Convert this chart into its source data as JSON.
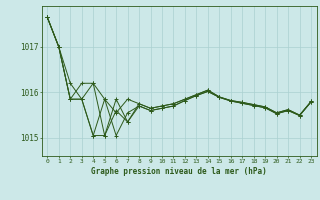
{
  "background_color": "#cce8e8",
  "grid_color": "#aad0d0",
  "line_color": "#2d5a1b",
  "xlabel": "Graphe pression niveau de la mer (hPa)",
  "xlim": [
    -0.5,
    23.5
  ],
  "ylim": [
    1014.6,
    1017.9
  ],
  "yticks": [
    1015,
    1016,
    1017
  ],
  "xticks": [
    0,
    1,
    2,
    3,
    4,
    5,
    6,
    7,
    8,
    9,
    10,
    11,
    12,
    13,
    14,
    15,
    16,
    17,
    18,
    19,
    20,
    21,
    22,
    23
  ],
  "series": [
    [
      1017.65,
      1017.0,
      1016.2,
      1015.85,
      1016.2,
      1015.05,
      1015.85,
      1015.35,
      1015.75,
      1015.65,
      1015.7,
      1015.75,
      1015.85,
      1015.95,
      1016.05,
      1015.9,
      1015.82,
      1015.78,
      1015.73,
      1015.68,
      1015.55,
      1015.62,
      1015.5,
      1015.8
    ],
    [
      1017.65,
      1017.0,
      1015.85,
      1016.2,
      1016.2,
      1015.85,
      1015.55,
      1015.85,
      1015.75,
      1015.65,
      1015.7,
      1015.75,
      1015.85,
      1015.95,
      1016.05,
      1015.9,
      1015.82,
      1015.78,
      1015.73,
      1015.68,
      1015.55,
      1015.62,
      1015.5,
      1015.8
    ],
    [
      1017.65,
      1017.0,
      1015.85,
      1015.85,
      1015.05,
      1015.85,
      1015.05,
      1015.55,
      1015.7,
      1015.6,
      1015.65,
      1015.7,
      1015.82,
      1015.93,
      1016.02,
      1015.89,
      1015.81,
      1015.76,
      1015.71,
      1015.66,
      1015.53,
      1015.6,
      1015.49,
      1015.79
    ],
    [
      1017.65,
      1017.0,
      1015.85,
      1015.85,
      1015.05,
      1015.05,
      1015.6,
      1015.35,
      1015.7,
      1015.6,
      1015.65,
      1015.7,
      1015.82,
      1015.93,
      1016.02,
      1015.89,
      1015.81,
      1015.76,
      1015.71,
      1015.66,
      1015.53,
      1015.6,
      1015.49,
      1015.79
    ]
  ]
}
